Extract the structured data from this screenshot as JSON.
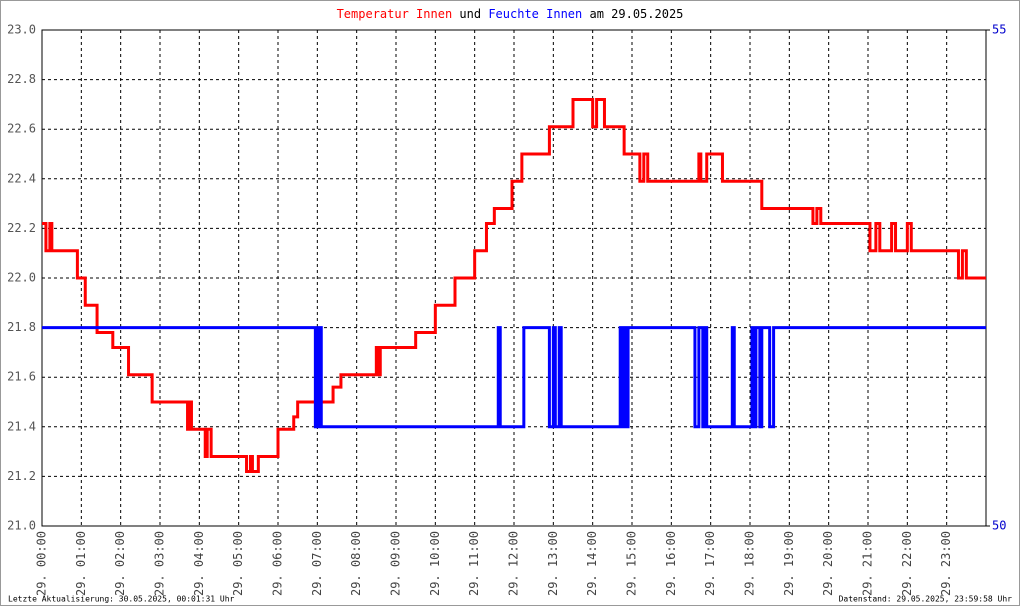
{
  "chart_data": {
    "type": "line",
    "step": true,
    "title_join": "und",
    "title_date": "am 29.05.2025",
    "footer_left": "Letzte Aktualisierung: 30.05.2025, 00:01:31 Uhr",
    "footer_right": "Datenstand: 29.05.2025, 23:59:58 Uhr",
    "grid": true,
    "xlim": [
      0,
      24
    ],
    "xticks": [
      {
        "value": 0,
        "label": "29. 00:00"
      },
      {
        "value": 1,
        "label": "29. 01:00"
      },
      {
        "value": 2,
        "label": "29. 02:00"
      },
      {
        "value": 3,
        "label": "29. 03:00"
      },
      {
        "value": 4,
        "label": "29. 04:00"
      },
      {
        "value": 5,
        "label": "29. 05:00"
      },
      {
        "value": 6,
        "label": "29. 06:00"
      },
      {
        "value": 7,
        "label": "29. 07:00"
      },
      {
        "value": 8,
        "label": "29. 08:00"
      },
      {
        "value": 9,
        "label": "29. 09:00"
      },
      {
        "value": 10,
        "label": "29. 10:00"
      },
      {
        "value": 11,
        "label": "29. 11:00"
      },
      {
        "value": 12,
        "label": "29. 12:00"
      },
      {
        "value": 13,
        "label": "29. 13:00"
      },
      {
        "value": 14,
        "label": "29. 14:00"
      },
      {
        "value": 15,
        "label": "29. 15:00"
      },
      {
        "value": 16,
        "label": "29. 16:00"
      },
      {
        "value": 17,
        "label": "29. 17:00"
      },
      {
        "value": 18,
        "label": "29. 18:00"
      },
      {
        "value": 19,
        "label": "29. 19:00"
      },
      {
        "value": 20,
        "label": "29. 20:00"
      },
      {
        "value": 21,
        "label": "29. 21:00"
      },
      {
        "value": 22,
        "label": "29. 22:00"
      },
      {
        "value": 23,
        "label": "29. 23:00"
      }
    ],
    "ylim": [
      21,
      23
    ],
    "yticks": [
      {
        "value": 21,
        "label": "21.0"
      },
      21.2,
      21.4,
      21.6,
      21.8,
      {
        "value": 22,
        "label": "22.0"
      },
      22.2,
      22.4,
      22.6,
      22.8,
      {
        "value": 23,
        "label": "23.0"
      }
    ],
    "y2lim": [
      50,
      55
    ],
    "y2ticks": [
      50,
      55
    ],
    "y2color": "#0000cc",
    "series": [
      {
        "name": "Temperatur Innen",
        "color": "#ff0000",
        "x": [
          0,
          0.1,
          0.2,
          0.25,
          0.9,
          1.1,
          1.4,
          1.8,
          2.2,
          2.8,
          3.7,
          3.75,
          3.8,
          4.15,
          4.2,
          4.3,
          5.2,
          5.3,
          5.35,
          5.5,
          6.0,
          6.4,
          6.5,
          7.4,
          7.6,
          8.5,
          8.55,
          8.6,
          9.5,
          10.0,
          10.5,
          11.0,
          11.3,
          11.5,
          11.95,
          12.2,
          12.9,
          13.5,
          14.0,
          14.1,
          14.3,
          14.8,
          15.2,
          15.3,
          15.4,
          16.7,
          16.75,
          16.9,
          17.3,
          18.1,
          18.3,
          19.4,
          19.6,
          19.7,
          19.8,
          21.0,
          21.05,
          21.2,
          21.3,
          21.6,
          21.7,
          22.0,
          22.1,
          23.3,
          23.4,
          23.5,
          24
        ],
        "values": [
          22.22,
          22.11,
          22.22,
          22.11,
          22.0,
          21.89,
          21.78,
          21.72,
          21.61,
          21.5,
          21.39,
          21.5,
          21.39,
          21.28,
          21.39,
          21.28,
          21.22,
          21.28,
          21.22,
          21.28,
          21.39,
          21.44,
          21.5,
          21.56,
          21.61,
          21.72,
          21.61,
          21.72,
          21.78,
          21.89,
          22.0,
          22.11,
          22.22,
          22.28,
          22.39,
          22.5,
          22.61,
          22.72,
          22.61,
          22.72,
          22.61,
          22.5,
          22.39,
          22.5,
          22.39,
          22.5,
          22.39,
          22.5,
          22.39,
          22.39,
          22.28,
          22.28,
          22.22,
          22.28,
          22.22,
          22.22,
          22.11,
          22.22,
          22.11,
          22.22,
          22.11,
          22.22,
          22.11,
          22.0,
          22.11,
          22.0,
          22.0
        ]
      },
      {
        "name": "Feuchte Innen",
        "color": "#0000ff",
        "axis": "y2",
        "x": [
          0,
          6.95,
          6.98,
          7.0,
          7.05,
          7.1,
          11.6,
          11.65,
          12.25,
          12.9,
          13.0,
          13.05,
          13.15,
          13.2,
          14.7,
          14.75,
          14.8,
          14.85,
          14.9,
          16.6,
          16.7,
          16.8,
          16.85,
          16.9,
          17.55,
          17.6,
          18.05,
          18.1,
          18.15,
          18.25,
          18.3,
          18.5,
          18.6,
          24
        ],
        "values": [
          52,
          51,
          52,
          51,
          52,
          51,
          52,
          51,
          52,
          51,
          52,
          51,
          52,
          51,
          52,
          51,
          52,
          51,
          52,
          51,
          52,
          51,
          52,
          51,
          52,
          51,
          52,
          51,
          52,
          51,
          52,
          51,
          52,
          52
        ]
      }
    ]
  }
}
